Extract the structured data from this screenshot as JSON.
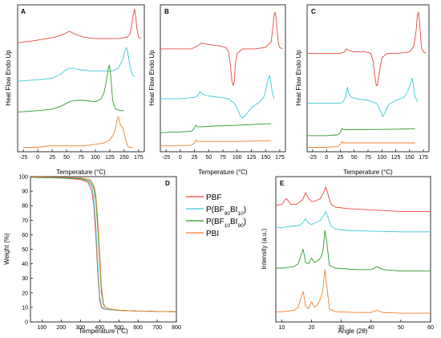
{
  "colors": {
    "PBF": "#e8473f",
    "BF90": "#3cc8d8",
    "BF10": "#2e9a2e",
    "PBI": "#f07f2e"
  },
  "legend": [
    {
      "key": "PBF",
      "parts": [
        [
          "PBF",
          ""
        ]
      ]
    },
    {
      "key": "BF90",
      "parts": [
        [
          "P(BF",
          ""
        ],
        [
          "90",
          "sub"
        ],
        [
          "BI",
          ""
        ],
        [
          "10",
          "sub"
        ],
        [
          ")",
          ""
        ]
      ]
    },
    {
      "key": "BF10",
      "parts": [
        [
          "P(BF",
          ""
        ],
        [
          "10",
          "sub"
        ],
        [
          "BI",
          ""
        ],
        [
          "90",
          "sub"
        ],
        [
          ")",
          ""
        ]
      ]
    },
    {
      "key": "PBI",
      "parts": [
        [
          "PBI",
          ""
        ]
      ]
    }
  ],
  "chart_data": [
    {
      "panel": "A",
      "type": "line",
      "xlabel": "Temperature (°C)",
      "ylabel": "Heat Flow Endo Up",
      "xlim": [
        -35,
        185
      ],
      "xticks": [
        -25,
        0,
        25,
        50,
        75,
        100,
        125,
        150,
        175
      ],
      "ylim": [
        0,
        100
      ],
      "series": [
        {
          "key": "PBF",
          "x": [
            -35,
            0,
            30,
            45,
            55,
            65,
            80,
            100,
            120,
            140,
            155,
            160,
            163,
            166,
            168,
            170,
            172,
            175,
            180
          ],
          "y": [
            74,
            76,
            78,
            80,
            82,
            80,
            78,
            77,
            77,
            77,
            78,
            80,
            86,
            94,
            97,
            92,
            84,
            78,
            77
          ]
        },
        {
          "key": "BF90",
          "x": [
            -35,
            0,
            25,
            40,
            50,
            60,
            70,
            90,
            110,
            130,
            140,
            148,
            151,
            154,
            156,
            159,
            162,
            165,
            168
          ],
          "y": [
            48,
            49,
            50,
            53,
            56,
            57,
            56,
            55,
            55,
            55,
            57,
            63,
            68,
            71,
            68,
            61,
            55,
            52,
            51
          ]
        },
        {
          "key": "BF10",
          "x": [
            -35,
            0,
            25,
            40,
            55,
            65,
            80,
            100,
            110,
            115,
            119,
            122,
            124,
            126,
            128,
            130,
            135,
            145,
            150
          ],
          "y": [
            27,
            28,
            29,
            31,
            34,
            35,
            35,
            34,
            36,
            40,
            48,
            56,
            59,
            55,
            45,
            35,
            29,
            28,
            28
          ]
        },
        {
          "key": "PBI",
          "x": [
            -25,
            0,
            20,
            40,
            60,
            80,
            100,
            115,
            125,
            132,
            136,
            138,
            140,
            142,
            144,
            146,
            148,
            150,
            153,
            156,
            160,
            165
          ],
          "y": [
            3,
            3,
            4,
            4,
            4,
            4,
            5,
            6,
            8,
            12,
            18,
            22,
            24,
            20,
            18,
            17,
            16,
            12,
            8,
            4,
            3,
            3
          ]
        }
      ]
    },
    {
      "panel": "B",
      "type": "line",
      "xlabel": "Temperature (°C)",
      "ylabel": "",
      "xlim": [
        -35,
        185
      ],
      "xticks": [
        -25,
        0,
        25,
        50,
        75,
        100,
        125,
        150,
        175
      ],
      "ylim": [
        0,
        100
      ],
      "series": [
        {
          "key": "PBF",
          "x": [
            -35,
            0,
            20,
            30,
            38,
            50,
            70,
            80,
            85,
            88,
            91,
            93,
            95,
            97,
            100,
            110,
            130,
            150,
            160,
            163,
            165,
            167,
            169,
            171,
            173,
            175,
            180
          ],
          "y": [
            70,
            70,
            70,
            72,
            74,
            73,
            72,
            71,
            68,
            60,
            48,
            45,
            48,
            60,
            67,
            70,
            70,
            71,
            75,
            85,
            93,
            95,
            90,
            80,
            73,
            71,
            70
          ]
        },
        {
          "key": "BF90",
          "x": [
            -35,
            0,
            25,
            30,
            35,
            40,
            50,
            70,
            85,
            95,
            102,
            106,
            110,
            115,
            125,
            140,
            148,
            152,
            155,
            157,
            159,
            162,
            165
          ],
          "y": [
            36,
            36,
            37,
            38,
            41,
            39,
            38,
            37,
            36,
            33,
            28,
            24,
            23,
            25,
            30,
            34,
            38,
            45,
            50,
            52,
            48,
            40,
            36
          ]
        },
        {
          "key": "BF10",
          "x": [
            -35,
            0,
            20,
            25,
            27,
            30,
            40,
            60,
            100,
            150,
            160
          ],
          "y": [
            13,
            13.5,
            14,
            16,
            18,
            17,
            17,
            17.5,
            18,
            19,
            19
          ]
        },
        {
          "key": "PBI",
          "x": [
            -35,
            0,
            20,
            25,
            28,
            30,
            40,
            60,
            100,
            150,
            160
          ],
          "y": [
            4,
            4,
            4.5,
            6,
            8,
            7,
            7,
            7,
            7,
            7.5,
            7.5
          ]
        }
      ]
    },
    {
      "panel": "C",
      "type": "line",
      "xlabel": "Temperature (°C)",
      "ylabel": "",
      "xlim": [
        -35,
        185
      ],
      "xticks": [
        -25,
        0,
        25,
        50,
        75,
        100,
        125,
        150,
        175
      ],
      "ylim": [
        0,
        100
      ],
      "series": [
        {
          "key": "PBF",
          "x": [
            -35,
            0,
            25,
            33,
            36,
            40,
            50,
            70,
            80,
            84,
            87,
            90,
            92,
            95,
            100,
            110,
            130,
            150,
            158,
            162,
            164,
            166,
            168,
            170,
            172,
            175,
            180
          ],
          "y": [
            67,
            67,
            67,
            68,
            70,
            69,
            68,
            68,
            67,
            62,
            52,
            45,
            45,
            53,
            64,
            67,
            67,
            68,
            72,
            83,
            93,
            95,
            88,
            77,
            70,
            68,
            67
          ]
        },
        {
          "key": "BF90",
          "x": [
            -35,
            0,
            25,
            30,
            35,
            38,
            40,
            45,
            55,
            75,
            90,
            97,
            102,
            106,
            112,
            125,
            140,
            148,
            152,
            155,
            157,
            160,
            165
          ],
          "y": [
            33,
            33,
            33,
            34,
            38,
            44,
            40,
            37,
            36,
            35,
            33,
            28,
            24,
            27,
            32,
            35,
            37,
            42,
            47,
            50,
            44,
            37,
            34
          ]
        },
        {
          "key": "BF10",
          "x": [
            -35,
            0,
            20,
            25,
            28,
            30,
            40,
            60,
            100,
            150,
            160
          ],
          "y": [
            11,
            11,
            11.5,
            13,
            16,
            15,
            15,
            15,
            15.2,
            15.5,
            15.5
          ]
        },
        {
          "key": "PBI",
          "x": [
            -35,
            0,
            20,
            25,
            28,
            30,
            40,
            60,
            100,
            150,
            160
          ],
          "y": [
            3,
            3,
            3.5,
            5,
            7,
            6,
            6,
            6,
            6,
            6,
            6
          ]
        }
      ]
    },
    {
      "panel": "D",
      "type": "line",
      "xlabel": "Temperature (°C)",
      "ylabel": "Weight (%)",
      "xlim": [
        40,
        800
      ],
      "xticks": [
        100,
        200,
        300,
        400,
        500,
        600,
        700,
        800
      ],
      "ylim": [
        0,
        100
      ],
      "yticks": [
        0,
        10,
        20,
        30,
        40,
        50,
        60,
        70,
        80,
        90,
        100
      ],
      "series": [
        {
          "key": "PBF",
          "x": [
            40,
            200,
            300,
            340,
            360,
            370,
            380,
            390,
            400,
            410,
            420,
            440,
            500,
            600,
            800
          ],
          "y": [
            99.5,
            99,
            98,
            96,
            90,
            80,
            60,
            35,
            15,
            10,
            9,
            8.5,
            8,
            7.5,
            7
          ]
        },
        {
          "key": "BF90",
          "x": [
            40,
            200,
            300,
            340,
            360,
            370,
            380,
            390,
            400,
            410,
            420,
            440,
            500,
            600,
            800
          ],
          "y": [
            99.5,
            99,
            98.5,
            97,
            93,
            85,
            67,
            42,
            18,
            11,
            9.5,
            8.5,
            8,
            7.5,
            7
          ]
        },
        {
          "key": "BF10",
          "x": [
            40,
            200,
            300,
            350,
            370,
            380,
            390,
            400,
            410,
            420,
            430,
            450,
            500,
            600,
            800
          ],
          "y": [
            99.5,
            99.2,
            98.8,
            97,
            92,
            84,
            66,
            42,
            20,
            12,
            10,
            9,
            8,
            7.5,
            7
          ]
        },
        {
          "key": "PBI",
          "x": [
            40,
            200,
            300,
            350,
            370,
            380,
            390,
            400,
            410,
            420,
            430,
            450,
            500,
            600,
            800
          ],
          "y": [
            99.8,
            99.5,
            99.2,
            98,
            94,
            88,
            72,
            48,
            24,
            13,
            10,
            9,
            8,
            7.5,
            7
          ]
        }
      ]
    },
    {
      "panel": "E",
      "type": "line",
      "xlabel": "Angle (2θ)",
      "ylabel": "Intensity (a.u.)",
      "xlim": [
        8,
        60
      ],
      "xticks": [
        10,
        20,
        30,
        40,
        50,
        60
      ],
      "ylim": [
        0,
        100
      ],
      "series": [
        {
          "key": "PBF",
          "x": [
            8,
            10,
            11.5,
            13,
            15,
            17,
            18,
            19,
            20,
            21,
            22,
            23,
            24,
            24.8,
            25.5,
            26.5,
            28,
            32,
            40,
            50,
            60
          ],
          "y": [
            80,
            81,
            85,
            81,
            81,
            84,
            89,
            85,
            83,
            83,
            84,
            85,
            89,
            93,
            88,
            81,
            79,
            78,
            77,
            76,
            76
          ]
        },
        {
          "key": "BF90",
          "x": [
            8,
            10,
            12,
            14,
            16,
            17,
            18,
            19,
            20,
            21,
            22,
            23,
            24,
            24.8,
            25.5,
            26.5,
            28,
            32,
            40,
            50,
            60
          ],
          "y": [
            65,
            65,
            65.5,
            66,
            66.5,
            68,
            71,
            68,
            67,
            68,
            69,
            70,
            73,
            76,
            72,
            66,
            64,
            63,
            62.5,
            62,
            62
          ]
        },
        {
          "key": "BF10",
          "x": [
            8,
            10,
            12,
            14,
            15.5,
            16.5,
            17.2,
            18,
            19,
            20,
            21,
            22,
            23,
            23.8,
            24.5,
            25.2,
            26,
            28,
            35,
            40,
            42,
            44,
            50,
            60
          ],
          "y": [
            37,
            37,
            37.5,
            38,
            40,
            46,
            50,
            41,
            40,
            44,
            41,
            42,
            44,
            48,
            63,
            54,
            39,
            37,
            36,
            36,
            38,
            36,
            35,
            35
          ]
        },
        {
          "key": "PBI",
          "x": [
            8,
            10,
            12,
            14,
            15.5,
            16.5,
            17.2,
            18,
            19,
            20,
            21,
            22,
            23,
            23.8,
            24.5,
            25.2,
            26,
            28,
            35,
            40,
            42,
            44,
            50,
            60
          ],
          "y": [
            7,
            7,
            7.5,
            8,
            10,
            17,
            21,
            11,
            9,
            14,
            10,
            12,
            16,
            22,
            36,
            24,
            9,
            7,
            6.5,
            6.5,
            8,
            6.5,
            6,
            6
          ]
        }
      ]
    }
  ]
}
